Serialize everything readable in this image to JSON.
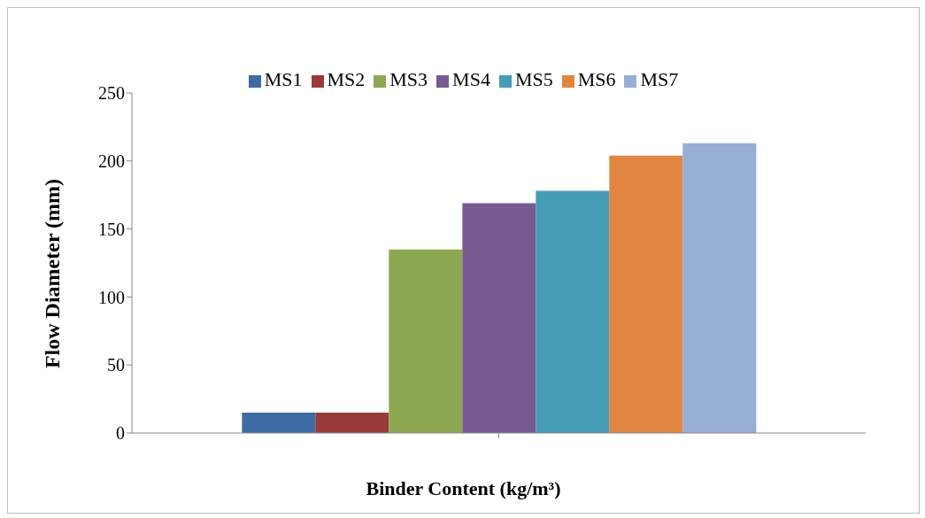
{
  "chart_data": {
    "type": "bar",
    "xlabel": "Binder Content (kg/m³)",
    "ylabel": "Flow Diameter (mm)",
    "categories": [
      null
    ],
    "series": [
      {
        "name": "MS1",
        "color": "#3e6ba3",
        "values": [
          15
        ]
      },
      {
        "name": "MS2",
        "color": "#9a3a38",
        "values": [
          15
        ]
      },
      {
        "name": "MS3",
        "color": "#8ea852",
        "values": [
          135
        ]
      },
      {
        "name": "MS4",
        "color": "#775a92",
        "values": [
          169
        ]
      },
      {
        "name": "MS5",
        "color": "#459db5",
        "values": [
          178
        ]
      },
      {
        "name": "MS6",
        "color": "#e08640",
        "values": [
          204
        ]
      },
      {
        "name": "MS7",
        "color": "#97aed5",
        "values": [
          213
        ]
      }
    ],
    "ylim": [
      0,
      250
    ],
    "yticks": [
      0,
      50,
      100,
      150,
      200,
      250
    ],
    "grid": false,
    "legend": "top"
  }
}
